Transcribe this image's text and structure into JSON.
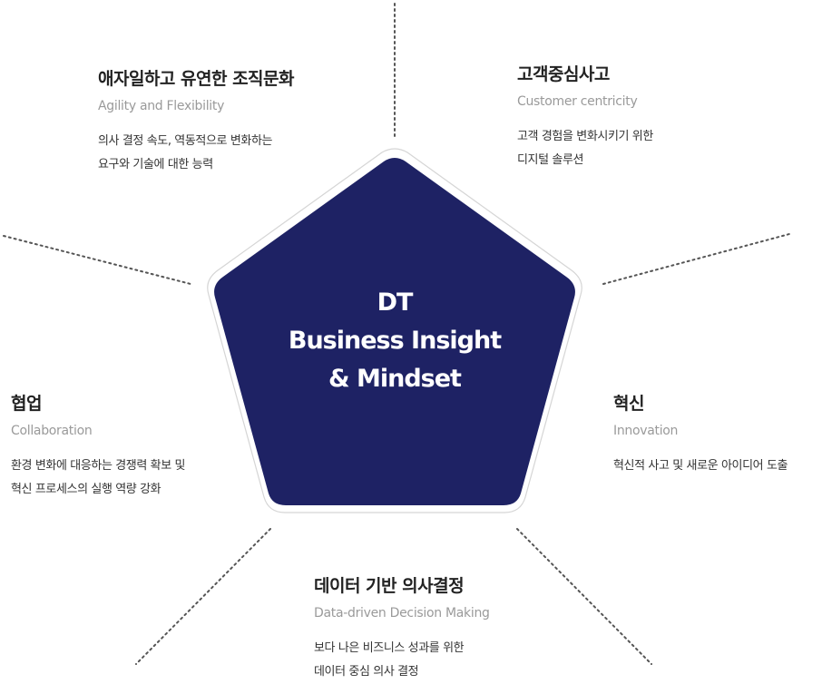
{
  "center": {
    "line1": "DT",
    "line2": "Business Insight",
    "line3": "& Mindset"
  },
  "blocks": {
    "agility": {
      "title": "애자일하고 유연한 조직문화",
      "subtitle": "Agility and Flexibility",
      "desc1": "의사 결정 속도, 역동적으로 변화하는",
      "desc2": "요구와 기술에 대한 능력"
    },
    "customer": {
      "title": "고객중심사고",
      "subtitle": "Customer centricity",
      "desc1": "고객 경험을 변화시키기 위한",
      "desc2": "디지털 솔루션"
    },
    "collaboration": {
      "title": "협업",
      "subtitle": "Collaboration",
      "desc1": "환경 변화에 대응하는 경쟁력 확보 및",
      "desc2": "혁신 프로세스의 실행 역량 강화"
    },
    "innovation": {
      "title": "혁신",
      "subtitle": "Innovation",
      "desc1": "혁신적 사고 및 새로운 아이디어 도출"
    },
    "data_driven": {
      "title": "데이터 기반 의사결정",
      "subtitle": "Data-driven Decision Making",
      "desc1": "보다 나은 비즈니스 성과를 위한",
      "desc2": "데이터 중심 의사 결정"
    }
  },
  "colors": {
    "pentagon_fill": "#1e2264",
    "pentagon_outline": "#d5d5d5",
    "dotted_line": "#555555"
  }
}
